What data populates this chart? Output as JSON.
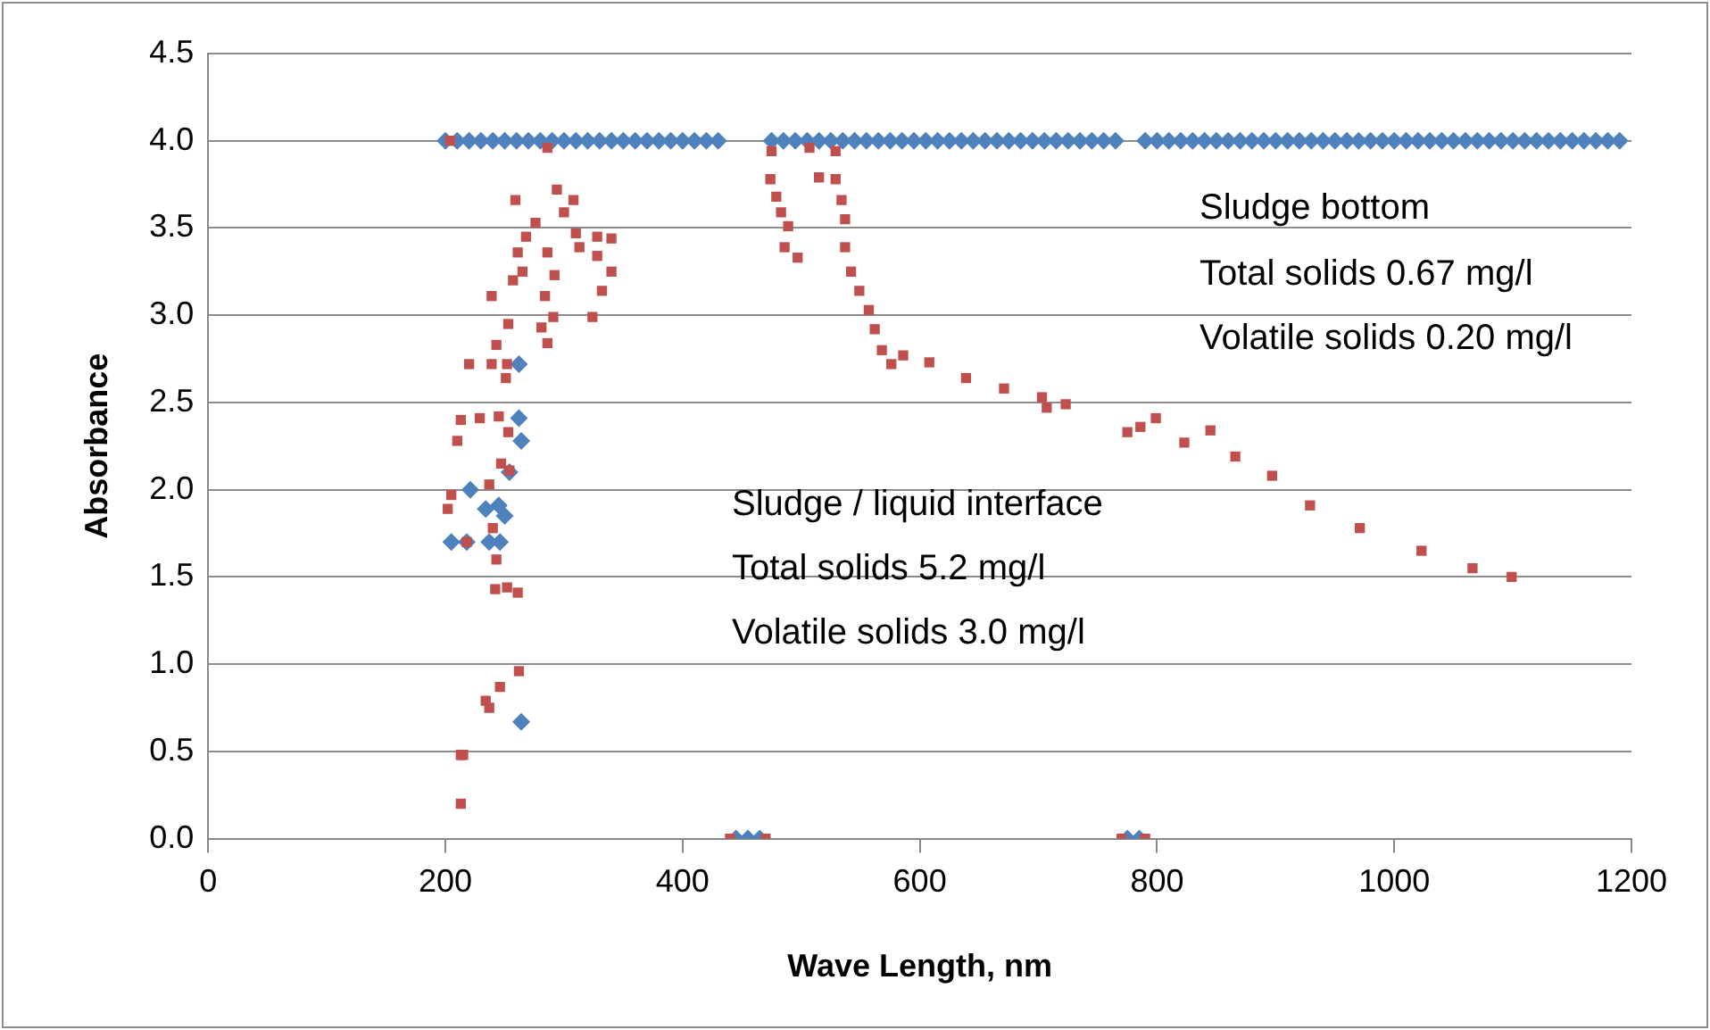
{
  "chart_data": {
    "type": "scatter",
    "xlabel": "Wave Length, nm",
    "ylabel": "Absorbance",
    "xlim": [
      0,
      1200
    ],
    "xticks": [
      0,
      200,
      400,
      600,
      800,
      1000,
      1200
    ],
    "ylim": [
      0,
      4.5
    ],
    "yticks": [
      {
        "value": 0,
        "label": "0.0"
      },
      {
        "value": 0.5,
        "label": "0.5"
      },
      {
        "value": 1,
        "label": "1.0"
      },
      {
        "value": 1.5,
        "label": "1.5"
      },
      {
        "value": 2,
        "label": "2.0"
      },
      {
        "value": 2.5,
        "label": "2.5"
      },
      {
        "value": 3,
        "label": "3.0"
      },
      {
        "value": 3.5,
        "label": "3.5"
      },
      {
        "value": 4,
        "label": "4.0"
      },
      {
        "value": 4.5,
        "label": "4.5"
      }
    ],
    "grid": "y",
    "legend": false,
    "annotations": [
      "Sludge bottom",
      "Total solids 0.67 mg/l",
      "Volatile solids 0.20 mg/l",
      "Sludge / liquid interface",
      "Total solids 5.2 mg/l",
      "Volatile solids 3.0 mg/l"
    ],
    "series": [
      {
        "color": "#c0504d",
        "marker": "square",
        "x": [
          204,
          213,
          213,
          202,
          205,
          210,
          213,
          215,
          218,
          220,
          229,
          234,
          237,
          237,
          239,
          239,
          240,
          242,
          243,
          243,
          245,
          246,
          247,
          251,
          252,
          252,
          253,
          253,
          254,
          257,
          259,
          261,
          261,
          262,
          265,
          268,
          276,
          281,
          284,
          286,
          286,
          286,
          291,
          292,
          294,
          300,
          308,
          310,
          313,
          324,
          328,
          328,
          332,
          340,
          340,
          440,
          470,
          475,
          474,
          479,
          483,
          489,
          486,
          497,
          507,
          529,
          515,
          529,
          534,
          537,
          537,
          542,
          549,
          557,
          562,
          568,
          576,
          586,
          608,
          639,
          671,
          703,
          723,
          707,
          775,
          786,
          799,
          823,
          845,
          866,
          897,
          929,
          971,
          1023,
          1066,
          1099,
          770,
          790
        ],
        "values": [
          4.0,
          2.4,
          0.2,
          1.89,
          1.97,
          2.28,
          0.48,
          0.48,
          1.7,
          2.72,
          2.41,
          0.79,
          0.75,
          2.03,
          2.72,
          3.11,
          1.78,
          1.43,
          1.6,
          2.83,
          2.42,
          0.87,
          2.15,
          2.64,
          2.72,
          1.44,
          2.95,
          2.33,
          2.11,
          3.2,
          3.66,
          3.36,
          1.41,
          0.96,
          3.25,
          3.45,
          3.53,
          2.93,
          3.11,
          3.36,
          2.84,
          3.96,
          2.99,
          3.23,
          3.72,
          3.59,
          3.66,
          3.47,
          3.39,
          2.99,
          3.45,
          3.34,
          3.14,
          3.44,
          3.25,
          0,
          0,
          3.94,
          3.78,
          3.68,
          3.59,
          3.51,
          3.39,
          3.33,
          3.96,
          3.94,
          3.79,
          3.78,
          3.66,
          3.55,
          3.39,
          3.25,
          3.14,
          3.03,
          2.92,
          2.8,
          2.72,
          2.77,
          2.73,
          2.64,
          2.58,
          2.53,
          2.49,
          2.47,
          2.33,
          2.36,
          2.41,
          2.27,
          2.34,
          2.19,
          2.08,
          1.91,
          1.78,
          1.65,
          1.55,
          1.5,
          0,
          0
        ]
      },
      {
        "color": "#4f81bd",
        "marker": "diamond",
        "x": [
          200,
          210,
          220,
          230,
          240,
          250,
          260,
          270,
          280,
          290,
          300,
          310,
          320,
          330,
          340,
          350,
          360,
          370,
          380,
          390,
          400,
          410,
          420,
          430,
          475,
          485,
          495,
          505,
          515,
          525,
          535,
          545,
          555,
          565,
          575,
          585,
          595,
          605,
          615,
          625,
          635,
          645,
          655,
          665,
          675,
          685,
          695,
          705,
          715,
          725,
          735,
          745,
          755,
          765,
          790,
          800,
          810,
          820,
          830,
          840,
          850,
          860,
          870,
          880,
          890,
          900,
          910,
          920,
          930,
          940,
          950,
          960,
          970,
          980,
          990,
          1000,
          1010,
          1020,
          1030,
          1040,
          1050,
          1060,
          1070,
          1080,
          1090,
          1100,
          1110,
          1120,
          1130,
          1140,
          1150,
          1160,
          1170,
          1180,
          1190,
          262,
          262,
          264,
          254,
          221,
          234,
          245,
          250,
          205,
          218,
          237,
          246,
          264,
          445,
          455,
          465,
          775,
          785
        ],
        "values": [
          4,
          4,
          4,
          4,
          4,
          4,
          4,
          4,
          4,
          4,
          4,
          4,
          4,
          4,
          4,
          4,
          4,
          4,
          4,
          4,
          4,
          4,
          4,
          4,
          4,
          4,
          4,
          4,
          4,
          4,
          4,
          4,
          4,
          4,
          4,
          4,
          4,
          4,
          4,
          4,
          4,
          4,
          4,
          4,
          4,
          4,
          4,
          4,
          4,
          4,
          4,
          4,
          4,
          4,
          4,
          4,
          4,
          4,
          4,
          4,
          4,
          4,
          4,
          4,
          4,
          4,
          4,
          4,
          4,
          4,
          4,
          4,
          4,
          4,
          4,
          4,
          4,
          4,
          4,
          4,
          4,
          4,
          4,
          4,
          4,
          4,
          4,
          4,
          4,
          4,
          4,
          4,
          4,
          4,
          4,
          2.72,
          2.41,
          2.28,
          2.1,
          2.0,
          1.89,
          1.91,
          1.85,
          1.7,
          1.7,
          1.7,
          1.7,
          0.67,
          0,
          0,
          0,
          0,
          0
        ]
      }
    ]
  }
}
